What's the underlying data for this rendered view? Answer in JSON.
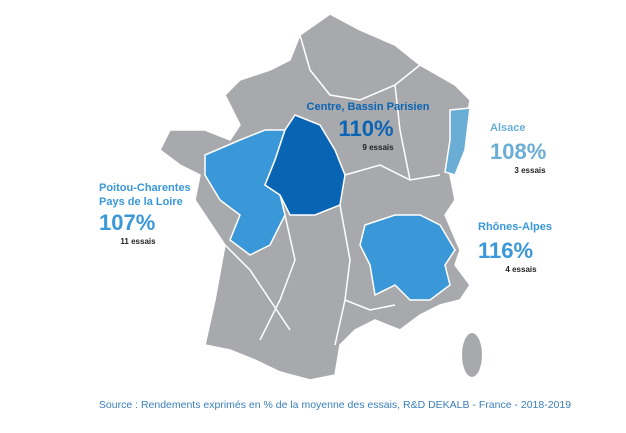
{
  "regions": [
    {
      "name": "Centre, Bassin Parisien",
      "value": "110%",
      "trials": "9 essais"
    },
    {
      "name": "Alsace",
      "value": "108%",
      "trials": "3 essais"
    },
    {
      "name_lines": [
        "Poitou-Charentes",
        "Pays de la Loire"
      ],
      "value": "107%",
      "trials": "11 essais"
    },
    {
      "name": "Rhônes-Alpes",
      "value": "116%",
      "trials": "4 essais"
    }
  ],
  "source": "Source : Rendements exprimés en % de la moyenne des essais, R&D DEKALB - France - 2018-2019"
}
